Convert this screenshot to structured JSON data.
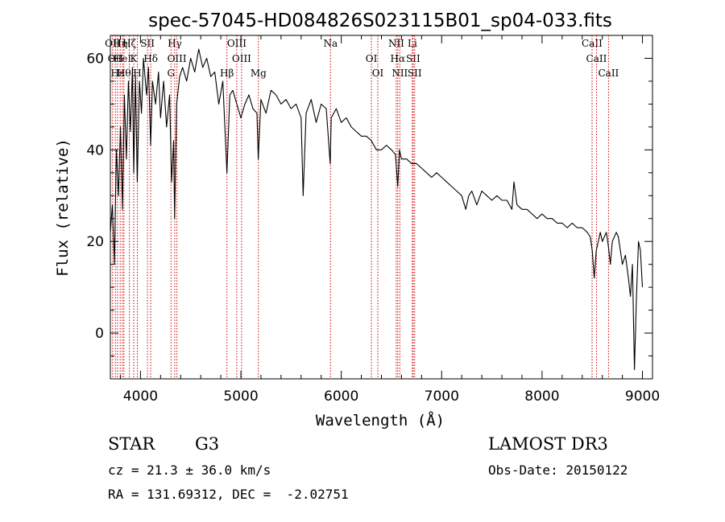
{
  "chart_data": {
    "type": "line",
    "title": "spec-57045-HD084826S023115B01_sp04-033.fits",
    "xlabel": "Wavelength (Å)",
    "ylabel": "Flux (relative)",
    "xlim": [
      3700,
      9100
    ],
    "ylim": [
      -10,
      65
    ],
    "xticks": [
      4000,
      5000,
      6000,
      7000,
      8000,
      9000
    ],
    "yticks": [
      0,
      20,
      40,
      60
    ],
    "series": [
      {
        "x": [
          3700,
          3720,
          3740,
          3760,
          3780,
          3800,
          3820,
          3840,
          3860,
          3880,
          3900,
          3920,
          3933,
          3950,
          3968,
          3990,
          4010,
          4030,
          4060,
          4080,
          4101,
          4120,
          4150,
          4180,
          4200,
          4230,
          4260,
          4290,
          4310,
          4330,
          4340,
          4360,
          4390,
          4420,
          4460,
          4500,
          4540,
          4580,
          4620,
          4660,
          4700,
          4740,
          4780,
          4820,
          4861,
          4890,
          4920,
          4960,
          5000,
          5040,
          5080,
          5120,
          5160,
          5173,
          5200,
          5250,
          5300,
          5350,
          5400,
          5450,
          5500,
          5550,
          5600,
          5620,
          5650,
          5700,
          5750,
          5800,
          5850,
          5890,
          5900,
          5950,
          6000,
          6050,
          6100,
          6150,
          6200,
          6250,
          6300,
          6350,
          6400,
          6450,
          6500,
          6540,
          6563,
          6580,
          6600,
          6650,
          6700,
          6750,
          6800,
          6850,
          6900,
          6950,
          7000,
          7050,
          7100,
          7150,
          7200,
          7240,
          7270,
          7300,
          7350,
          7400,
          7450,
          7500,
          7550,
          7600,
          7650,
          7700,
          7720,
          7750,
          7800,
          7850,
          7900,
          7950,
          8000,
          8050,
          8100,
          8150,
          8200,
          8250,
          8300,
          8350,
          8400,
          8450,
          8480,
          8500,
          8520,
          8540,
          8560,
          8580,
          8600,
          8620,
          8640,
          8660,
          8680,
          8700,
          8720,
          8740,
          8760,
          8780,
          8800,
          8830,
          8860,
          8880,
          8900,
          8920,
          8940,
          8960,
          8980,
          9000
        ],
        "y": [
          22,
          28,
          15,
          40,
          30,
          45,
          27,
          52,
          38,
          55,
          44,
          58,
          35,
          56,
          33,
          55,
          48,
          60,
          52,
          58,
          41,
          55,
          50,
          57,
          47,
          55,
          45,
          52,
          33,
          42,
          25,
          50,
          56,
          58,
          55,
          60,
          57,
          62,
          58,
          60,
          56,
          57,
          50,
          55,
          35,
          52,
          53,
          50,
          47,
          50,
          52,
          49,
          48,
          38,
          51,
          48,
          53,
          52,
          50,
          51,
          49,
          50,
          47,
          30,
          48,
          51,
          46,
          50,
          49,
          37,
          47,
          49,
          46,
          47,
          45,
          44,
          43,
          43,
          42,
          40,
          40,
          41,
          40,
          39,
          32,
          40,
          38,
          38,
          37,
          37,
          36,
          35,
          34,
          35,
          34,
          33,
          32,
          31,
          30,
          27,
          30,
          31,
          28,
          31,
          30,
          29,
          30,
          29,
          29,
          27,
          33,
          28,
          27,
          27,
          26,
          25,
          26,
          25,
          25,
          24,
          24,
          23,
          24,
          23,
          23,
          22,
          21,
          18,
          12,
          18,
          20,
          22,
          20,
          21,
          22,
          19,
          15,
          20,
          21,
          22,
          21,
          18,
          15,
          17,
          12,
          8,
          15,
          -8,
          8,
          20,
          18,
          10
        ]
      }
    ],
    "line_markers": [
      {
        "w": 3722,
        "label": "OII"
      },
      {
        "w": 3750,
        "label": "OII"
      },
      {
        "w": 3771,
        "label": "Hε"
      },
      {
        "w": 3798,
        "label": "Hη"
      },
      {
        "w": 3820,
        "label": "HeI"
      },
      {
        "w": 3835,
        "label": "Hθ"
      },
      {
        "w": 3889,
        "label": "Hζ"
      },
      {
        "w": 3933,
        "label": "K"
      },
      {
        "w": 3969,
        "label": "H"
      },
      {
        "w": 4070,
        "label": "SII"
      },
      {
        "w": 4102,
        "label": "Hδ"
      },
      {
        "w": 4304,
        "label": "G"
      },
      {
        "w": 4341,
        "label": "Hγ"
      },
      {
        "w": 4363,
        "label": "OIII"
      },
      {
        "w": 4861,
        "label": "Hβ"
      },
      {
        "w": 4959,
        "label": "OIII"
      },
      {
        "w": 5007,
        "label": "OIII"
      },
      {
        "w": 5175,
        "label": "Mg"
      },
      {
        "w": 5893,
        "label": "Na"
      },
      {
        "w": 6300,
        "label": "OI"
      },
      {
        "w": 6364,
        "label": "OI"
      },
      {
        "w": 6548,
        "label": "NII"
      },
      {
        "w": 6563,
        "label": "Hα"
      },
      {
        "w": 6583,
        "label": "NII"
      },
      {
        "w": 6708,
        "label": "Li"
      },
      {
        "w": 6716,
        "label": "SII"
      },
      {
        "w": 6731,
        "label": "SII"
      },
      {
        "w": 8498,
        "label": "CaII"
      },
      {
        "w": 8542,
        "label": "CaII"
      },
      {
        "w": 8662,
        "label": "CaII"
      }
    ],
    "grid": false,
    "colors": {
      "spectrum": "#000000",
      "markers": "#cc0000"
    }
  },
  "info": {
    "object_class": "STAR",
    "subclass": "G3",
    "survey": "LAMOST DR3",
    "redshift": "cz = 21.3 ± 36.0 km/s",
    "obs_date": "Obs-Date: 20150122",
    "coords": "RA = 131.69312, DEC =  -2.02751"
  }
}
